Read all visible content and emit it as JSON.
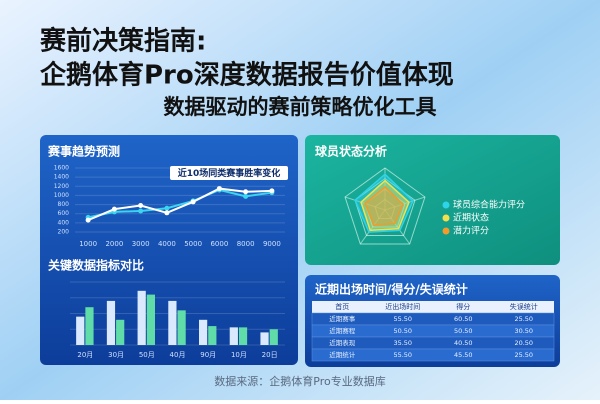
{
  "header": {
    "title_line1": "赛前决策指南:",
    "title_line2": "企鹅体育Pro深度数据报告价值体现",
    "subtitle": "数据驱动的赛前策略优化工具"
  },
  "chart_data": [
    {
      "type": "line",
      "title": "赛事趋势预测",
      "categories": [
        "1000",
        "2000",
        "3000",
        "4000",
        "5000",
        "6000",
        "8000",
        "9000"
      ],
      "series": [
        {
          "name": "近10场同类赛事胜率变化",
          "color": "#3ad6f0",
          "values": [
            520,
            640,
            660,
            720,
            880,
            1120,
            980,
            1060
          ]
        },
        {
          "color": "#ffffff",
          "values": [
            460,
            700,
            780,
            620,
            860,
            1150,
            1080,
            1100
          ]
        }
      ],
      "ylim": [
        200,
        1600
      ],
      "yticks": [
        200,
        400,
        600,
        800,
        1000,
        1200,
        1400,
        1600
      ],
      "grid": true
    },
    {
      "type": "bar",
      "title": "关键数据指标对比",
      "categories": [
        "20月",
        "30月",
        "50月",
        "40月",
        "90月",
        "10月",
        "20日"
      ],
      "series": [
        {
          "color": "#dbe9ff",
          "values": [
            45,
            70,
            86,
            70,
            40,
            28,
            20
          ]
        },
        {
          "color": "#5fdca8",
          "values": [
            60,
            40,
            80,
            55,
            30,
            28,
            25
          ]
        }
      ],
      "ylim": [
        0,
        100
      ],
      "grid": true
    },
    {
      "type": "radar",
      "title": "球员状态分析",
      "series": [
        {
          "name": "球员综合能力评分",
          "color": "#2fd3e8",
          "values": [
            85,
            70,
            60,
            65,
            75
          ]
        },
        {
          "name": "近期状态",
          "color": "#f4e04d",
          "values": [
            70,
            60,
            55,
            60,
            60
          ]
        },
        {
          "name": "潜力评分",
          "color": "#f29b2c",
          "values": [
            55,
            45,
            40,
            45,
            50
          ]
        }
      ],
      "rlim": [
        0,
        100
      ]
    }
  ],
  "table": {
    "title": "近期出场时间/得分/失误统计",
    "columns": [
      "首页",
      "近出场时间",
      "得分",
      "失误统计"
    ],
    "rows": [
      [
        "近期赛事",
        "55.50",
        "60.50",
        "25.50"
      ],
      [
        "近期赛程",
        "50.50",
        "50.50",
        "30.50"
      ],
      [
        "近期表现",
        "35.50",
        "40.50",
        "20.50"
      ],
      [
        "近期统计",
        "55.50",
        "45.50",
        "25.50"
      ]
    ]
  },
  "footer": "数据来源：企鹅体育Pro专业数据库"
}
